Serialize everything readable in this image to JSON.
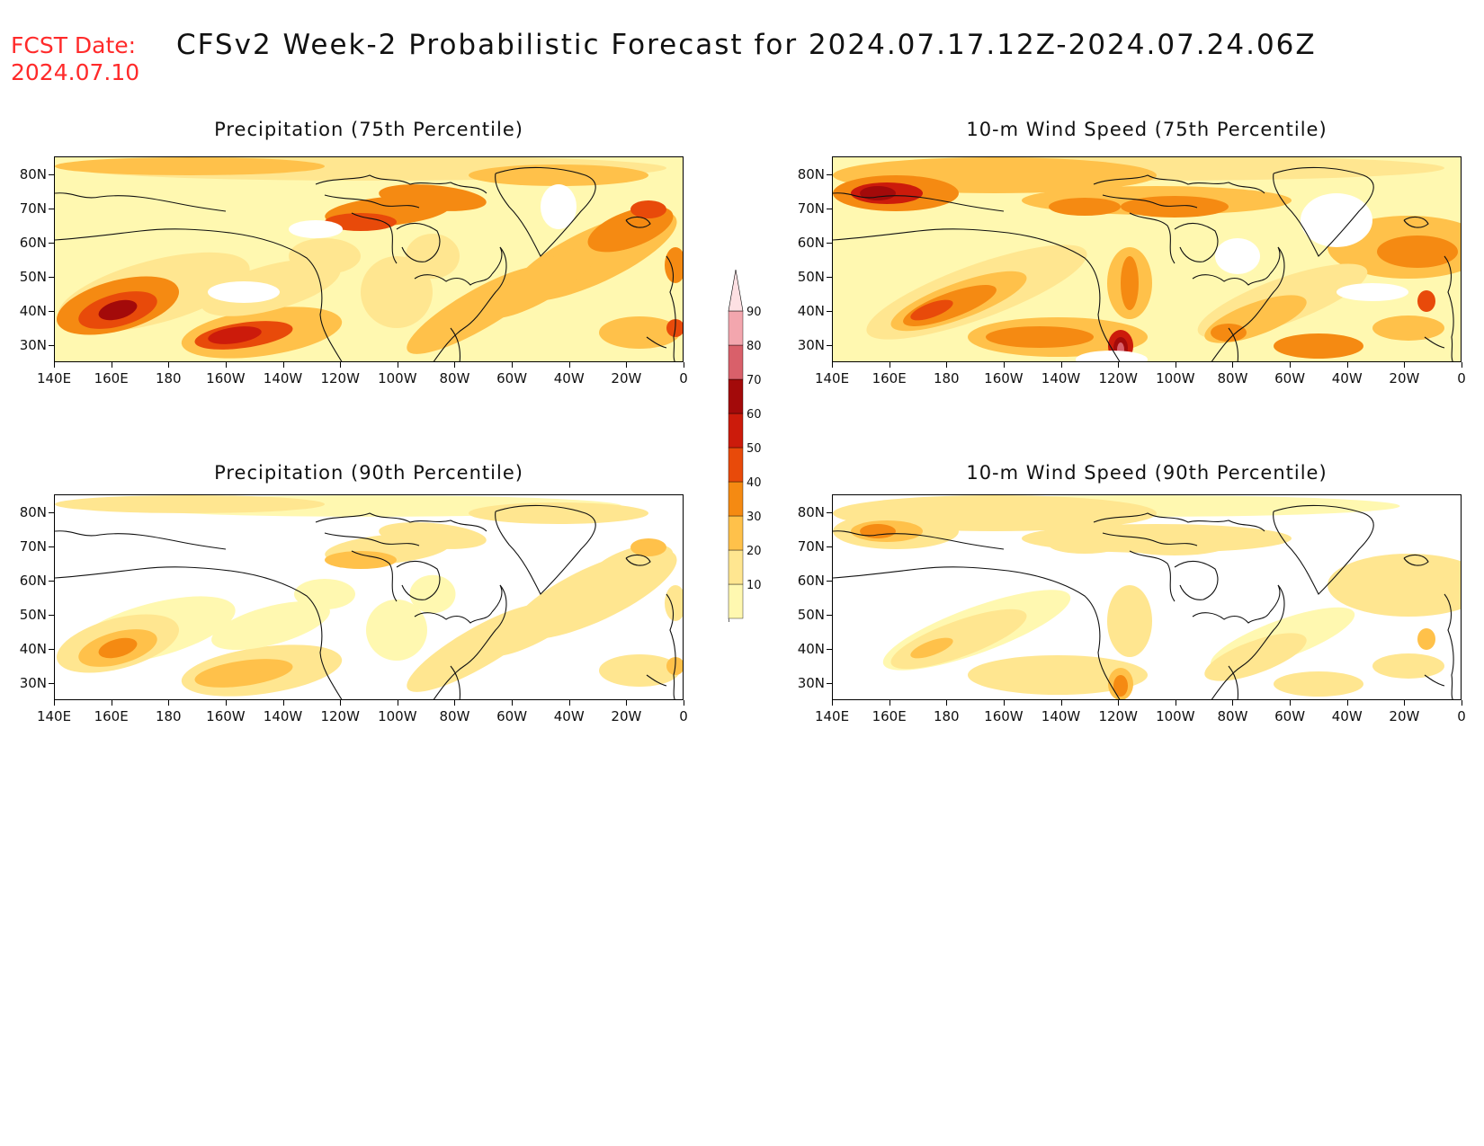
{
  "header": {
    "fcst_label": "FCST Date:",
    "fcst_date": "2024.07.10",
    "title": "CFSv2 Week-2 Probabilistic Forecast for 2024.07.17.12Z-2024.07.24.06Z"
  },
  "axes": {
    "lat_labels": [
      "80N",
      "70N",
      "60N",
      "50N",
      "40N",
      "30N"
    ],
    "lon_labels": [
      "140E",
      "160E",
      "180",
      "160W",
      "140W",
      "120W",
      "100W",
      "80W",
      "60W",
      "40W",
      "20W",
      "0"
    ]
  },
  "panels": [
    {
      "id": "precip75",
      "title": "Precipitation (75th Percentile)"
    },
    {
      "id": "wind75",
      "title": "10-m Wind Speed (75th Percentile)"
    },
    {
      "id": "precip90",
      "title": "Precipitation (90th Percentile)"
    },
    {
      "id": "wind90",
      "title": "10-m Wind Speed (90th Percentile)"
    }
  ],
  "colorbar": {
    "levels": [
      "10",
      "20",
      "30",
      "40",
      "50",
      "60",
      "70",
      "80",
      "90"
    ],
    "colors": [
      "#fff8b0",
      "#ffe690",
      "#ffc14a",
      "#f58a12",
      "#e84a0a",
      "#cc1b0b",
      "#a30a0a",
      "#d9606a",
      "#f3a6ae",
      "#fde0e3"
    ]
  },
  "colors": {
    "fcst_text": "#ff2a2a",
    "background": "#ffffff"
  }
}
